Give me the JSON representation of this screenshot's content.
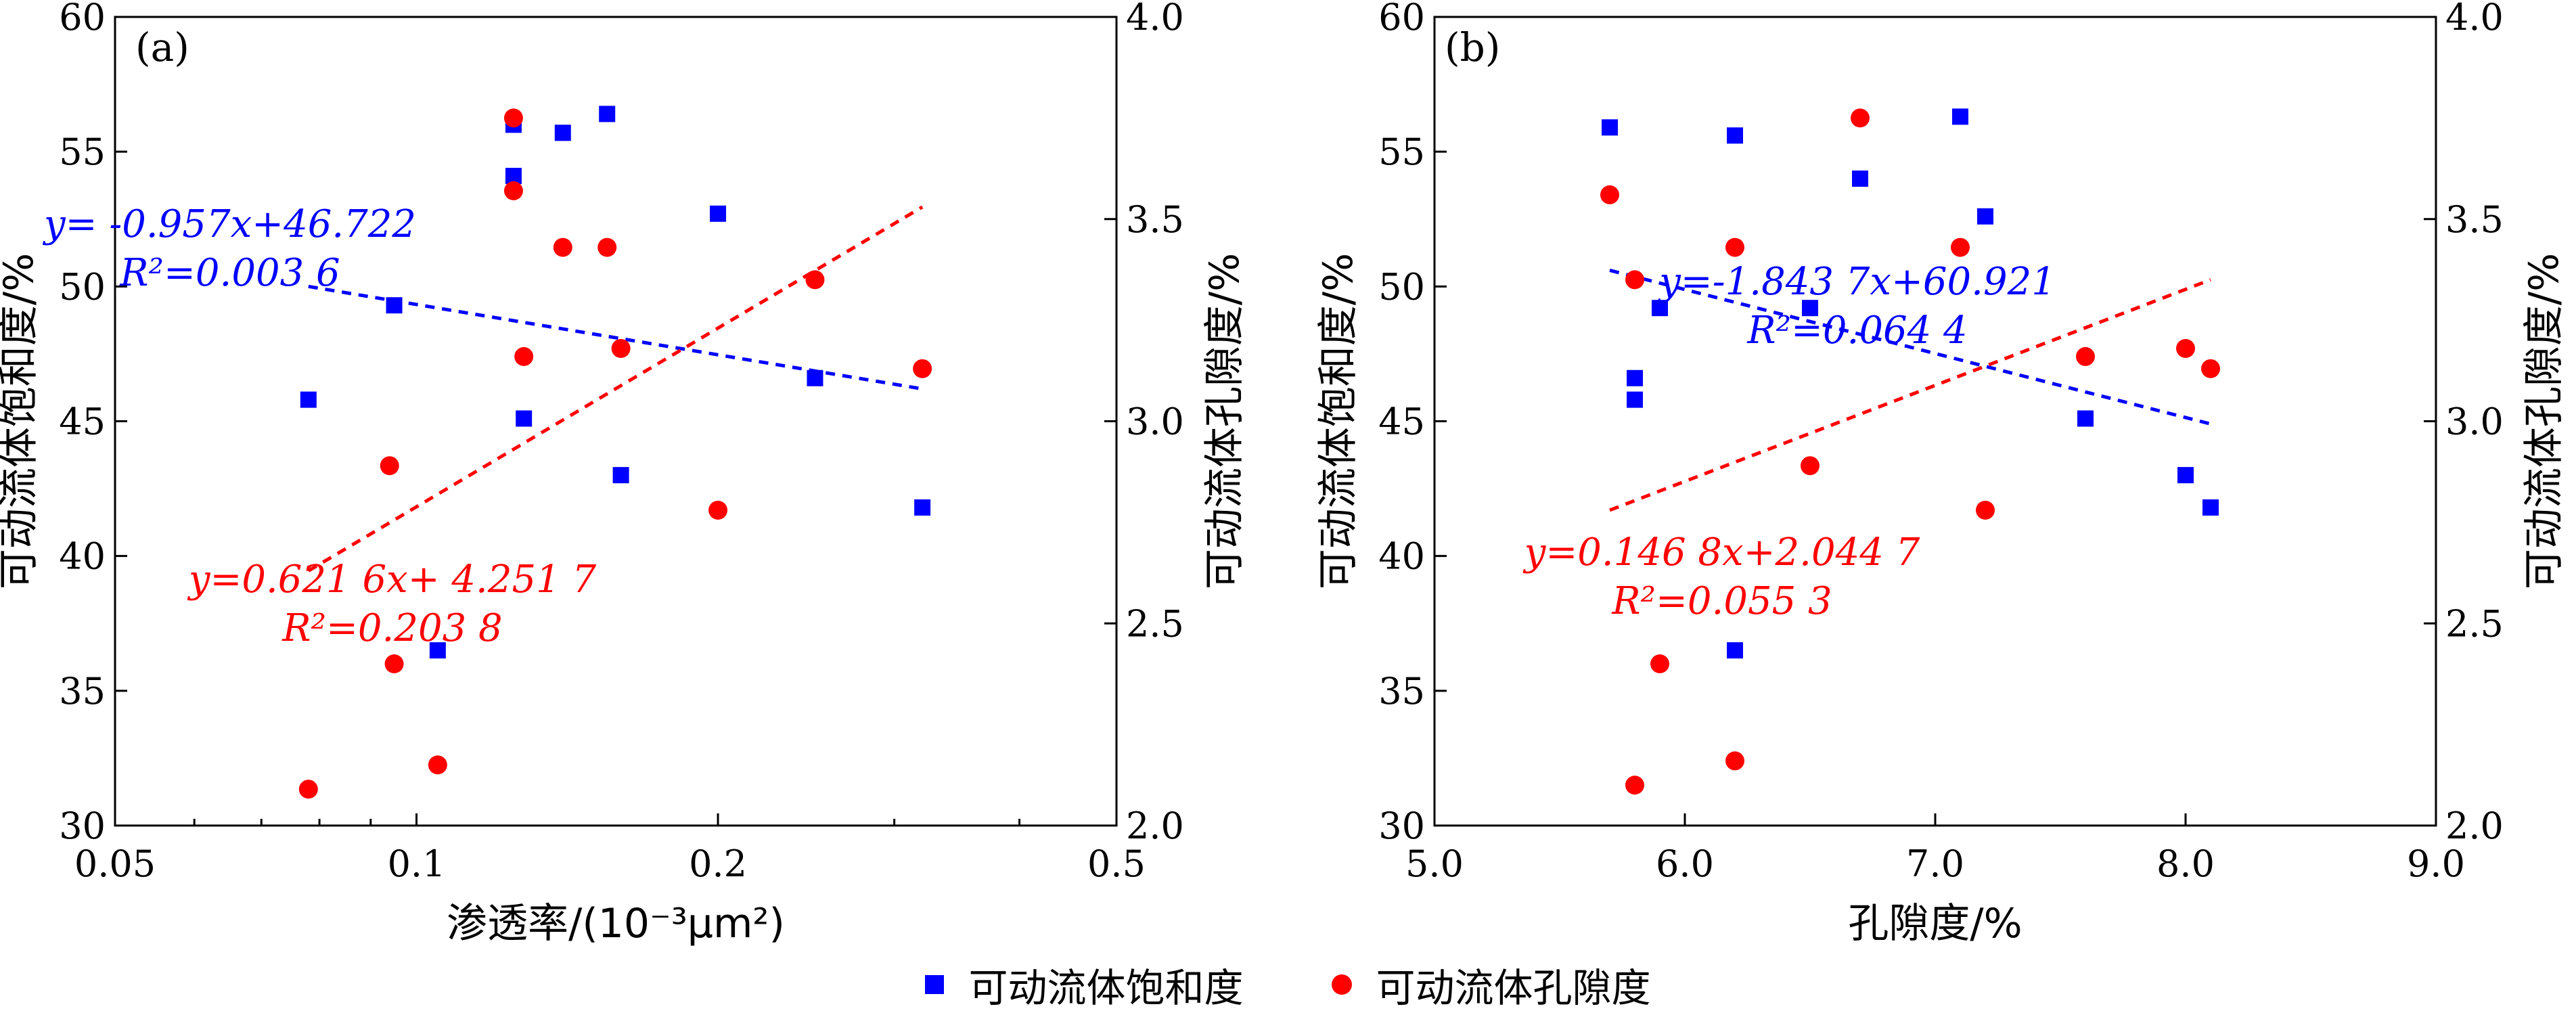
{
  "colors": {
    "saturation": "#0000ff",
    "porosity": "#ff0000",
    "axis": "#000000"
  },
  "legend": {
    "saturation": "可动流体饱和度",
    "porosity": "可动流体孔隙度",
    "saturation_marker": "square",
    "porosity_marker": "circle"
  },
  "chart_data": [
    {
      "panel_label": "(a)",
      "type": "scatter",
      "xlabel": "渗透率/(10⁻³μm²)",
      "x_scale": "log",
      "xlim": [
        0.05,
        0.5
      ],
      "xticks": [
        0.05,
        0.1,
        0.2,
        0.5
      ],
      "xtick_labels": [
        "0.05",
        "0.1",
        "0.2",
        "0.5"
      ],
      "ylabel_left": "可动流体饱和度/%",
      "ylim_left": [
        30,
        60
      ],
      "yticks_left": [
        "30",
        "35",
        "40",
        "45",
        "50",
        "55",
        "60"
      ],
      "ylabel_right": "可动流体孔隙度/%",
      "ylim_right": [
        2.0,
        4.0
      ],
      "yticks_right": [
        "2.0",
        "2.5",
        "3.0",
        "3.5",
        "4.0"
      ],
      "series": [
        {
          "name": "可动流体饱和度",
          "marker": "square",
          "axis": "left",
          "x": [
            0.078,
            0.095,
            0.105,
            0.125,
            0.125,
            0.128,
            0.14,
            0.155,
            0.16,
            0.2,
            0.25,
            0.32
          ],
          "y": [
            45.8,
            49.3,
            36.5,
            56.0,
            54.1,
            45.1,
            55.7,
            56.4,
            43.0,
            52.7,
            46.6,
            41.8
          ]
        },
        {
          "name": "可动流体孔隙度",
          "marker": "circle",
          "axis": "right",
          "x": [
            0.078,
            0.094,
            0.095,
            0.105,
            0.125,
            0.125,
            0.128,
            0.14,
            0.155,
            0.16,
            0.2,
            0.25,
            0.32
          ],
          "y": [
            2.09,
            2.89,
            2.4,
            2.15,
            3.75,
            3.57,
            3.16,
            3.43,
            3.43,
            3.18,
            2.78,
            3.35,
            3.13
          ]
        }
      ],
      "trendlines": [
        {
          "axis": "left",
          "color": "#0000ff",
          "x": [
            0.078,
            0.32
          ],
          "y": [
            50.0,
            46.2
          ]
        },
        {
          "axis": "right",
          "color": "#ff0000",
          "x": [
            0.078,
            0.32
          ],
          "y": [
            2.63,
            3.53
          ]
        }
      ],
      "annotations": [
        {
          "color": "#0000ff",
          "equation": "y= -0.957x+46.722",
          "r2": "R²=0.003 6"
        },
        {
          "color": "#ff0000",
          "equation": "y=0.621 6x+ 4.251 7",
          "r2": "R²=0.203 8"
        }
      ]
    },
    {
      "panel_label": "(b)",
      "type": "scatter",
      "xlabel": "孔隙度/%",
      "x_scale": "linear",
      "xlim": [
        5.0,
        9.0
      ],
      "xticks": [
        5.0,
        6.0,
        7.0,
        8.0,
        9.0
      ],
      "xtick_labels": [
        "5.0",
        "6.0",
        "7.0",
        "8.0",
        "9.0"
      ],
      "ylabel_left": "可动流体饱和度/%",
      "ylim_left": [
        30,
        60
      ],
      "yticks_left": [
        "30",
        "35",
        "40",
        "45",
        "50",
        "55",
        "60"
      ],
      "ylabel_right": "可动流体孔隙度/%",
      "ylim_right": [
        2.0,
        4.0
      ],
      "yticks_right": [
        "2.0",
        "2.5",
        "3.0",
        "3.5",
        "4.0"
      ],
      "series": [
        {
          "name": "可动流体饱和度",
          "marker": "square",
          "axis": "left",
          "x": [
            5.7,
            5.8,
            5.8,
            5.9,
            6.2,
            6.2,
            6.5,
            6.7,
            7.1,
            7.2,
            7.6,
            8.0,
            8.1
          ],
          "y": [
            55.9,
            46.6,
            45.8,
            49.2,
            55.6,
            36.5,
            49.2,
            54.0,
            56.3,
            52.6,
            45.1,
            43.0,
            41.8
          ]
        },
        {
          "name": "可动流体孔隙度",
          "marker": "circle",
          "axis": "right",
          "x": [
            5.7,
            5.8,
            5.8,
            5.9,
            6.2,
            6.2,
            6.5,
            6.7,
            7.1,
            7.2,
            7.6,
            8.0,
            8.1
          ],
          "y": [
            3.56,
            3.35,
            2.1,
            2.4,
            3.43,
            2.16,
            2.89,
            3.75,
            3.43,
            2.78,
            3.16,
            3.18,
            3.13
          ]
        }
      ],
      "trendlines": [
        {
          "axis": "left",
          "color": "#0000ff",
          "x": [
            5.7,
            8.1
          ],
          "y": [
            50.6,
            44.9
          ]
        },
        {
          "axis": "right",
          "color": "#ff0000",
          "x": [
            5.7,
            8.1
          ],
          "y": [
            2.78,
            3.35
          ]
        }
      ],
      "annotations": [
        {
          "color": "#0000ff",
          "equation": "y=-1.843 7x+60.921",
          "r2": "R²=0.064 4"
        },
        {
          "color": "#ff0000",
          "equation": "y=0.146 8x+2.044 7",
          "r2": "R²=0.055 3"
        }
      ]
    }
  ]
}
